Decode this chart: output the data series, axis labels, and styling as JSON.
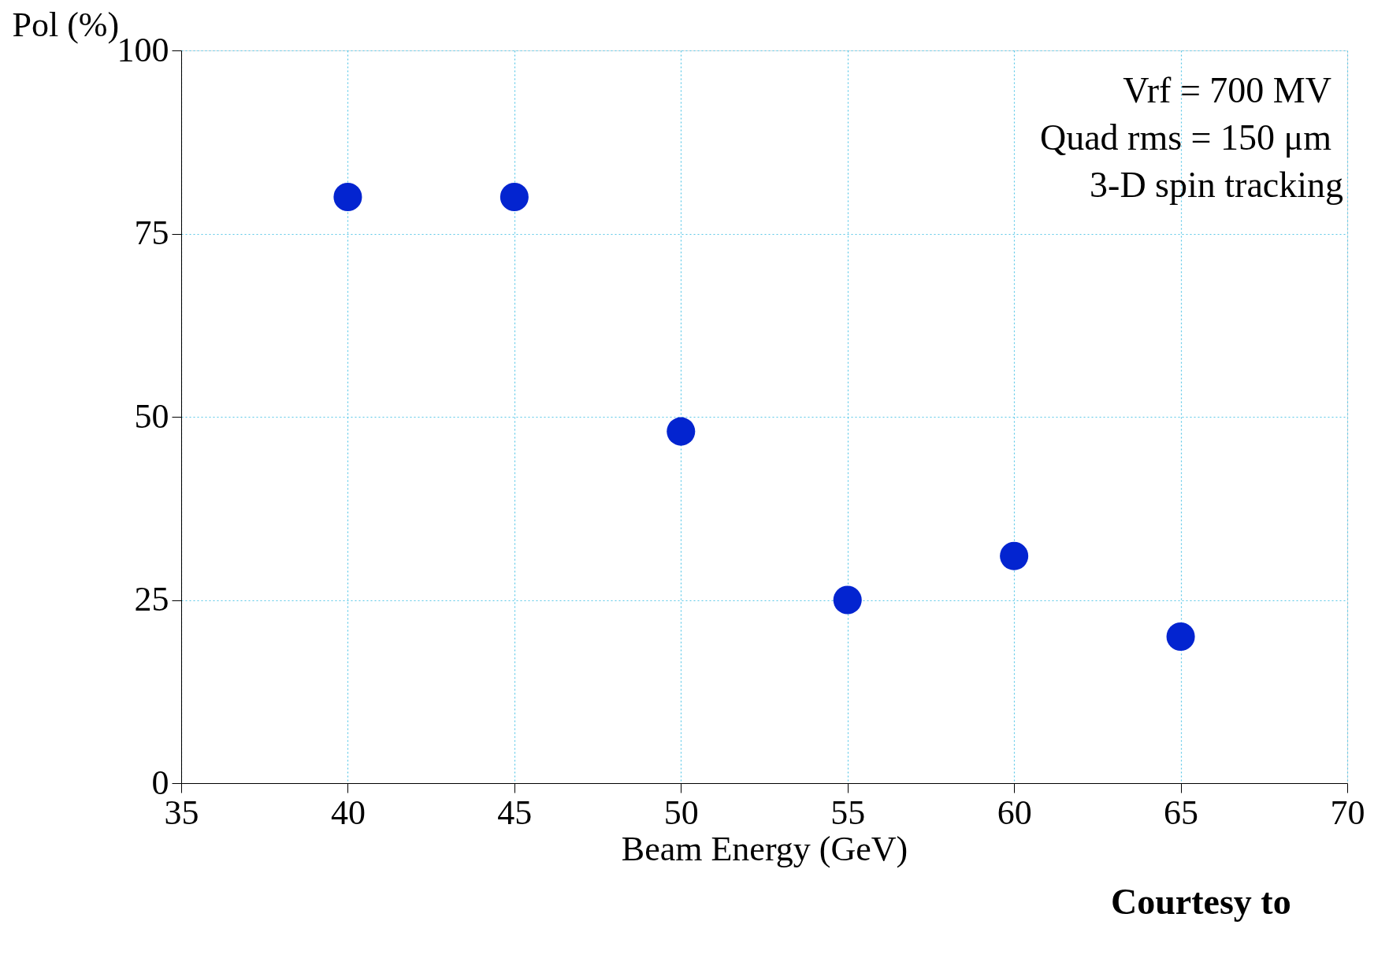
{
  "chart_data": {
    "type": "scatter",
    "xlabel": "Beam Energy (GeV)",
    "ylabel": "Pol (%)",
    "x": [
      40,
      45,
      50,
      55,
      60,
      65
    ],
    "series": [
      {
        "color": "#0324d0",
        "values": [
          80,
          80,
          48,
          25,
          31,
          20
        ]
      }
    ],
    "xlim": [
      35,
      70
    ],
    "xticks": [
      35,
      40,
      45,
      50,
      55,
      60,
      65,
      70
    ],
    "ylim": [
      0,
      100
    ],
    "yticks": [
      0,
      25,
      50,
      75,
      100
    ],
    "grid": true,
    "marker": "circle",
    "annotations": [
      "Vrf = 700 MV",
      "Quad rms = 150 μm",
      "3-D spin tracking",
      "Courtesy to"
    ]
  }
}
